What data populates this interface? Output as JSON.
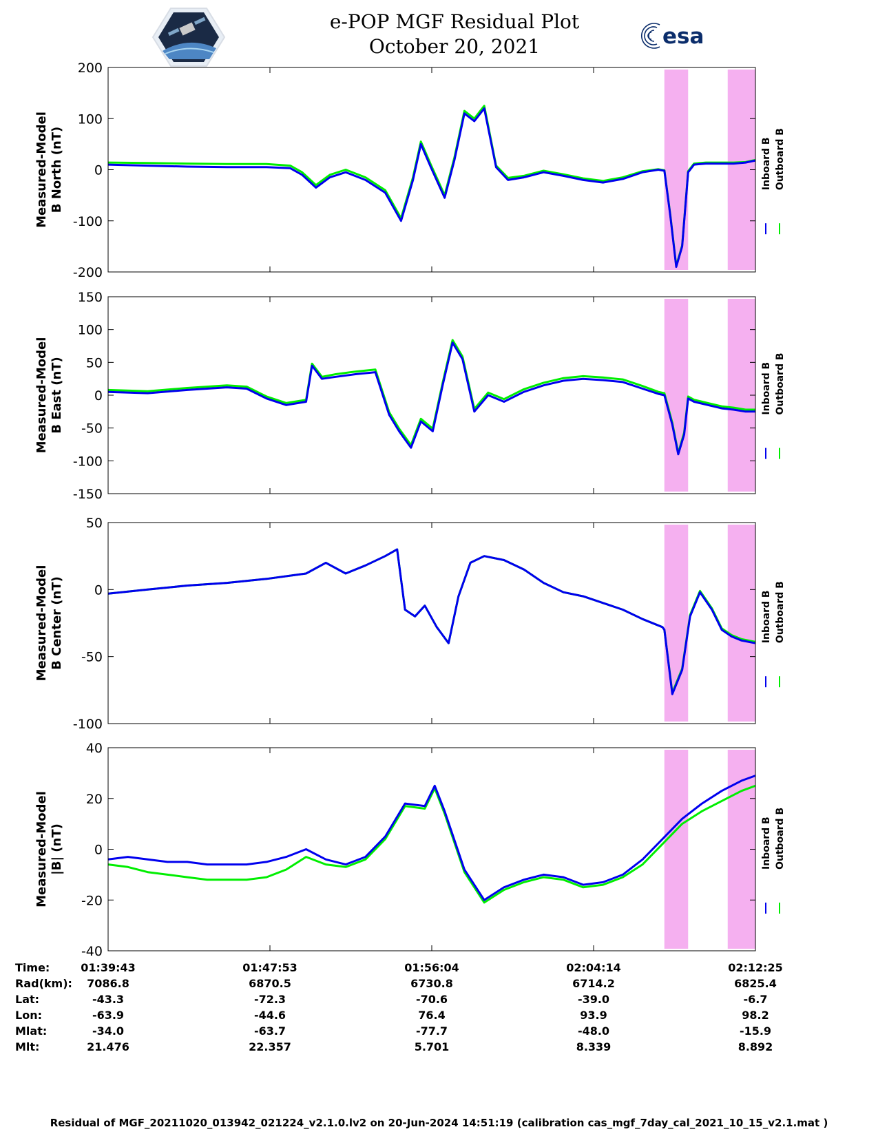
{
  "title": "e-POP MGF Residual Plot",
  "subtitle": "October 20, 2021",
  "logos": {
    "left": "cassiope-mission-patch",
    "right_text": "esa"
  },
  "colors": {
    "inboard": "#0000ee",
    "outboard": "#00ee00",
    "highlight": "#f5b0f0",
    "axes": "#000000"
  },
  "chart_data": [
    {
      "type": "line",
      "panel": "north",
      "ylabel": [
        "Measured-Model",
        "B North (nT)"
      ],
      "ylim": [
        -200,
        200
      ],
      "yticks": [
        -200,
        -100,
        0,
        100,
        200
      ],
      "legend": [
        "Inboard B",
        "Outboard B"
      ],
      "legend_placement": "right",
      "x_unit": "minutes after 01:39:43",
      "xlim": [
        0,
        32.7
      ],
      "highlight_spans": [
        [
          28.1,
          29.3
        ],
        [
          31.3,
          32.7
        ]
      ],
      "series": [
        {
          "name": "Inboard B",
          "x": [
            0,
            2,
            4,
            6,
            8,
            9.2,
            9.8,
            10.5,
            11.2,
            12,
            13,
            14,
            14.8,
            15.4,
            15.8,
            16.3,
            17,
            17.5,
            18,
            18.5,
            19,
            19.6,
            20.2,
            21,
            22,
            23,
            24,
            25,
            26,
            27,
            27.8,
            28.1,
            28.4,
            28.7,
            29.0,
            29.3,
            29.6,
            30.2,
            31,
            31.6,
            32.2,
            32.7
          ],
          "values": [
            10,
            8,
            6,
            5,
            5,
            3,
            -10,
            -35,
            -15,
            -5,
            -20,
            -45,
            -100,
            -20,
            50,
            5,
            -55,
            20,
            110,
            95,
            120,
            5,
            -20,
            -15,
            -5,
            -12,
            -20,
            -25,
            -18,
            -5,
            0,
            -2,
            -90,
            -190,
            -150,
            -5,
            10,
            12,
            12,
            12,
            14,
            18
          ]
        },
        {
          "name": "Outboard B",
          "x": [
            0,
            2,
            4,
            6,
            8,
            9.2,
            9.8,
            10.5,
            11.2,
            12,
            13,
            14,
            14.8,
            15.4,
            15.8,
            16.3,
            17,
            17.5,
            18,
            18.5,
            19,
            19.6,
            20.2,
            21,
            22,
            23,
            24,
            25,
            26,
            27,
            27.8,
            28.1,
            28.4,
            28.7,
            29.0,
            29.3,
            29.6,
            30.2,
            31,
            31.6,
            32.2,
            32.7
          ],
          "values": [
            14,
            13,
            12,
            11,
            11,
            8,
            -5,
            -30,
            -10,
            0,
            -15,
            -40,
            -95,
            -15,
            55,
            10,
            -50,
            25,
            115,
            100,
            125,
            8,
            -16,
            -12,
            -2,
            -9,
            -17,
            -22,
            -15,
            -3,
            1,
            -1,
            -88,
            -188,
            -148,
            -3,
            12,
            14,
            14,
            14,
            15,
            19
          ]
        }
      ]
    },
    {
      "type": "line",
      "panel": "east",
      "ylabel": [
        "Measured-Model",
        "B East (nT)"
      ],
      "ylim": [
        -150,
        150
      ],
      "yticks": [
        -150,
        -100,
        -50,
        0,
        50,
        100,
        150
      ],
      "legend": [
        "Inboard B",
        "Outboard B"
      ],
      "legend_placement": "right",
      "x_unit": "minutes after 01:39:43",
      "xlim": [
        0,
        32.7
      ],
      "highlight_spans": [
        [
          28.1,
          29.3
        ],
        [
          31.3,
          32.7
        ]
      ],
      "series": [
        {
          "name": "Inboard B",
          "x": [
            0,
            2,
            4,
            6,
            7,
            8,
            9,
            10,
            10.3,
            10.8,
            11.5,
            12.5,
            13.5,
            14.2,
            14.7,
            15.3,
            15.8,
            16.4,
            16.9,
            17.4,
            17.9,
            18.5,
            19.2,
            20,
            21,
            22,
            23,
            24,
            25,
            26,
            27,
            27.8,
            28.1,
            28.5,
            28.8,
            29.1,
            29.3,
            29.6,
            30.3,
            31,
            31.6,
            32.2,
            32.7
          ],
          "values": [
            5,
            3,
            8,
            12,
            10,
            -5,
            -15,
            -10,
            45,
            25,
            28,
            32,
            35,
            -30,
            -55,
            -80,
            -40,
            -55,
            15,
            80,
            55,
            -25,
            0,
            -10,
            5,
            15,
            22,
            25,
            23,
            20,
            10,
            2,
            0,
            -45,
            -90,
            -60,
            -5,
            -10,
            -15,
            -20,
            -22,
            -25,
            -25
          ]
        },
        {
          "name": "Outboard B",
          "x": [
            0,
            2,
            4,
            6,
            7,
            8,
            9,
            10,
            10.3,
            10.8,
            11.5,
            12.5,
            13.5,
            14.2,
            14.7,
            15.3,
            15.8,
            16.4,
            16.9,
            17.4,
            17.9,
            18.5,
            19.2,
            20,
            21,
            22,
            23,
            24,
            25,
            26,
            27,
            27.8,
            28.1,
            28.5,
            28.8,
            29.1,
            29.3,
            29.6,
            30.3,
            31,
            31.6,
            32.2,
            32.7
          ],
          "values": [
            8,
            6,
            11,
            15,
            13,
            -2,
            -12,
            -7,
            48,
            28,
            32,
            36,
            39,
            -26,
            -51,
            -76,
            -36,
            -51,
            19,
            84,
            59,
            -21,
            4,
            -6,
            9,
            19,
            26,
            29,
            27,
            24,
            14,
            5,
            3,
            -42,
            -88,
            -57,
            -2,
            -7,
            -12,
            -17,
            -19,
            -22,
            -22
          ]
        }
      ]
    },
    {
      "type": "line",
      "panel": "center",
      "ylabel": [
        "Measured-Model",
        "B Center (nT)"
      ],
      "ylim": [
        -100,
        50
      ],
      "yticks": [
        -100,
        -50,
        0,
        50
      ],
      "legend": [
        "Inboard B",
        "Outboard B"
      ],
      "legend_placement": "right",
      "x_unit": "minutes after 01:39:43",
      "xlim": [
        0,
        32.7
      ],
      "highlight_spans": [
        [
          28.1,
          29.3
        ],
        [
          31.3,
          32.7
        ]
      ],
      "series": [
        {
          "name": "Inboard B",
          "x": [
            0,
            2,
            4,
            6,
            8,
            10,
            11,
            12,
            13,
            14,
            14.6,
            15,
            15.5,
            16,
            16.6,
            17.2,
            17.7,
            18.3,
            19,
            20,
            21,
            22,
            23,
            24,
            25,
            26,
            27,
            28,
            28.1,
            28.5,
            29,
            29.4,
            29.9,
            30.5,
            31,
            31.5,
            32,
            32.7
          ],
          "values": [
            -3,
            0,
            3,
            5,
            8,
            12,
            20,
            12,
            18,
            25,
            30,
            -15,
            -20,
            -12,
            -28,
            -40,
            -5,
            20,
            25,
            22,
            15,
            5,
            -2,
            -5,
            -10,
            -15,
            -22,
            -28,
            -30,
            -78,
            -60,
            -20,
            -2,
            -15,
            -30,
            -35,
            -38,
            -40
          ]
        },
        {
          "name": "Outboard B",
          "x": [
            0,
            2,
            4,
            6,
            8,
            10,
            11,
            12,
            13,
            14,
            14.6,
            15,
            15.5,
            16,
            16.6,
            17.2,
            17.7,
            18.3,
            19,
            20,
            21,
            22,
            23,
            24,
            25,
            26,
            27,
            28,
            28.1,
            28.5,
            29,
            29.4,
            29.9,
            30.5,
            31,
            31.5,
            32,
            32.7
          ],
          "values": [
            -3,
            0,
            3,
            5,
            8,
            12,
            20,
            12,
            18,
            25,
            30,
            -15,
            -20,
            -12,
            -28,
            -40,
            -5,
            20,
            25,
            22,
            15,
            5,
            -2,
            -5,
            -10,
            -15,
            -22,
            -28,
            -30,
            -77,
            -59,
            -19,
            -1,
            -14,
            -29,
            -34,
            -37,
            -39
          ]
        }
      ]
    },
    {
      "type": "line",
      "panel": "total",
      "ylabel": [
        "Measured-Model",
        "|B| (nT)"
      ],
      "ylim": [
        -40,
        40
      ],
      "yticks": [
        -40,
        -20,
        0,
        20,
        40
      ],
      "legend": [
        "Inboard B",
        "Outboard B"
      ],
      "legend_placement": "right",
      "x_unit": "minutes after 01:39:43",
      "xlim": [
        0,
        32.7
      ],
      "highlight_spans": [
        [
          28.1,
          29.3
        ],
        [
          31.3,
          32.7
        ]
      ],
      "series": [
        {
          "name": "Inboard B",
          "x": [
            0,
            1,
            2,
            3,
            4,
            5,
            6,
            7,
            8,
            9,
            10,
            11,
            12,
            13,
            14,
            15,
            16,
            16.5,
            17,
            18,
            19,
            20,
            21,
            22,
            23,
            24,
            25,
            26,
            27,
            28,
            29,
            30,
            31,
            32,
            32.7
          ],
          "values": [
            -4,
            -3,
            -4,
            -5,
            -5,
            -6,
            -6,
            -6,
            -5,
            -3,
            0,
            -4,
            -6,
            -3,
            5,
            18,
            17,
            25,
            15,
            -8,
            -20,
            -15,
            -12,
            -10,
            -11,
            -14,
            -13,
            -10,
            -4,
            4,
            12,
            18,
            23,
            27,
            29
          ]
        },
        {
          "name": "Outboard B",
          "x": [
            0,
            1,
            2,
            3,
            4,
            5,
            6,
            7,
            8,
            9,
            10,
            11,
            12,
            13,
            14,
            15,
            16,
            16.5,
            17,
            18,
            19,
            20,
            21,
            22,
            23,
            24,
            25,
            26,
            27,
            28,
            29,
            30,
            31,
            32,
            32.7
          ],
          "values": [
            -6,
            -7,
            -9,
            -10,
            -11,
            -12,
            -12,
            -12,
            -11,
            -8,
            -3,
            -6,
            -7,
            -4,
            4,
            17,
            16,
            24,
            14,
            -9,
            -21,
            -16,
            -13,
            -11,
            -12,
            -15,
            -14,
            -11,
            -6,
            2,
            10,
            15,
            19,
            23,
            25
          ]
        }
      ]
    }
  ],
  "x_axis_time_labels": [
    "01:39:43",
    "01:47:53",
    "01:56:04",
    "02:04:14",
    "02:12:25"
  ],
  "info_rows": [
    {
      "label": "Time:",
      "values": [
        "01:39:43",
        "01:47:53",
        "01:56:04",
        "02:04:14",
        "02:12:25"
      ]
    },
    {
      "label": "Rad(km):",
      "values": [
        "7086.8",
        "6870.5",
        "6730.8",
        "6714.2",
        "6825.4"
      ]
    },
    {
      "label": "Lat:",
      "values": [
        "-43.3",
        "-72.3",
        "-70.6",
        "-39.0",
        "-6.7"
      ]
    },
    {
      "label": "Lon:",
      "values": [
        "-63.9",
        "-44.6",
        "76.4",
        "93.9",
        "98.2"
      ]
    },
    {
      "label": "Mlat:",
      "values": [
        "-34.0",
        "-63.7",
        "-77.7",
        "-48.0",
        "-15.9"
      ]
    },
    {
      "label": "Mlt:",
      "values": [
        "21.476",
        "22.357",
        "5.701",
        "8.339",
        "8.892"
      ]
    }
  ],
  "footer": "Residual of MGF_20211020_013942_021224_v2.1.0.lv2 on 20-Jun-2024 14:51:19 (calibration cas_mgf_7day_cal_2021_10_15_v2.1.mat )"
}
